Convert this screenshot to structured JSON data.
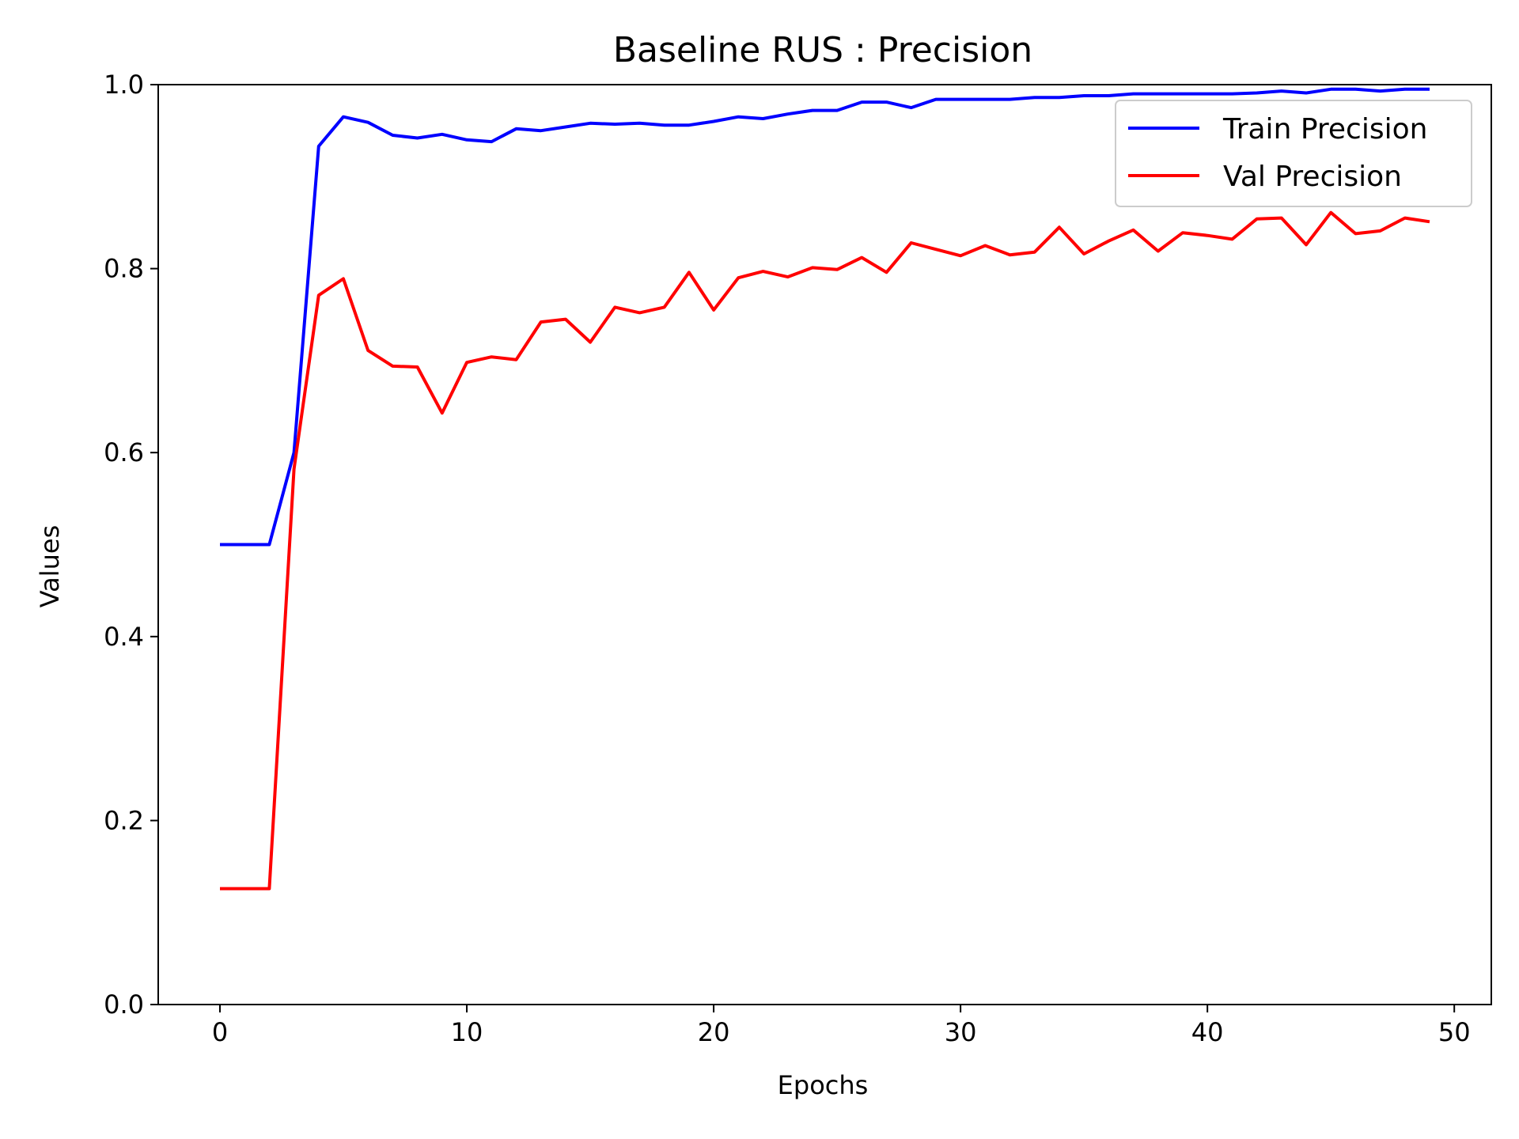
{
  "chart_data": {
    "type": "line",
    "title": "Baseline RUS : Precision",
    "xlabel": "Epochs",
    "ylabel": "Values",
    "xlim": [
      -2.5,
      51.5
    ],
    "ylim": [
      0.0,
      1.0
    ],
    "xticks": [
      0,
      10,
      20,
      30,
      40,
      50
    ],
    "yticks": [
      0.0,
      0.2,
      0.4,
      0.6,
      0.8,
      1.0
    ],
    "xtick_labels": [
      "0",
      "10",
      "20",
      "30",
      "40",
      "50"
    ],
    "ytick_labels": [
      "0.0",
      "0.2",
      "0.4",
      "0.6",
      "0.8",
      "1.0"
    ],
    "grid": false,
    "legend_position": "top-right",
    "x": [
      0,
      1,
      2,
      3,
      4,
      5,
      6,
      7,
      8,
      9,
      10,
      11,
      12,
      13,
      14,
      15,
      16,
      17,
      18,
      19,
      20,
      21,
      22,
      23,
      24,
      25,
      26,
      27,
      28,
      29,
      30,
      31,
      32,
      33,
      34,
      35,
      36,
      37,
      38,
      39,
      40,
      41,
      42,
      43,
      44,
      45,
      46,
      47,
      48,
      49
    ],
    "series": [
      {
        "name": "Train Precision",
        "color": "#0000ff",
        "values": [
          0.5,
          0.5,
          0.5,
          0.6,
          0.933,
          0.965,
          0.959,
          0.945,
          0.942,
          0.946,
          0.94,
          0.938,
          0.952,
          0.95,
          0.954,
          0.958,
          0.957,
          0.958,
          0.956,
          0.956,
          0.96,
          0.965,
          0.963,
          0.968,
          0.972,
          0.972,
          0.981,
          0.981,
          0.975,
          0.984,
          0.984,
          0.984,
          0.984,
          0.986,
          0.986,
          0.988,
          0.988,
          0.99,
          0.99,
          0.99,
          0.99,
          0.99,
          0.991,
          0.993,
          0.991,
          0.995,
          0.995,
          0.993,
          0.995,
          0.995
        ]
      },
      {
        "name": "Val Precision",
        "color": "#ff0000",
        "values": [
          0.126,
          0.126,
          0.126,
          0.582,
          0.771,
          0.789,
          0.711,
          0.694,
          0.693,
          0.643,
          0.698,
          0.704,
          0.701,
          0.742,
          0.745,
          0.72,
          0.758,
          0.752,
          0.758,
          0.796,
          0.755,
          0.79,
          0.797,
          0.791,
          0.801,
          0.799,
          0.812,
          0.796,
          0.828,
          0.821,
          0.814,
          0.825,
          0.815,
          0.818,
          0.845,
          0.816,
          0.83,
          0.842,
          0.819,
          0.839,
          0.836,
          0.832,
          0.854,
          0.855,
          0.826,
          0.861,
          0.838,
          0.841,
          0.855,
          0.851
        ]
      }
    ]
  }
}
